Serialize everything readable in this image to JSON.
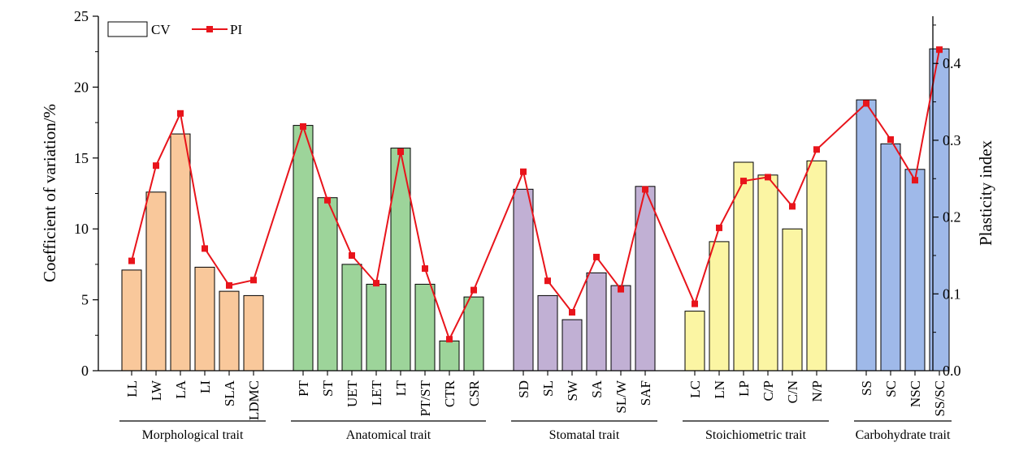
{
  "chart_data": {
    "type": "bar",
    "categories": [
      "LL",
      "LW",
      "LA",
      "LI",
      "SLA",
      "LDMC",
      "PT",
      "ST",
      "UET",
      "LET",
      "LT",
      "PT/ST",
      "CTR",
      "CSR",
      "SD",
      "SL",
      "SW",
      "SA",
      "SL/W",
      "SAF",
      "LC",
      "LN",
      "LP",
      "C/P",
      "C/N",
      "N/P",
      "SS",
      "SC",
      "NSC",
      "SS/SC"
    ],
    "groups": [
      {
        "name": "Morphological trait",
        "count": 6,
        "color": "#f9c89b"
      },
      {
        "name": "Anatomical trait",
        "count": 8,
        "color": "#9dd49a"
      },
      {
        "name": "Stomatal trait",
        "count": 6,
        "color": "#c1b0d4"
      },
      {
        "name": "Stoichiometric trait",
        "count": 6,
        "color": "#fbf5a3"
      },
      {
        "name": "Carbohydrate trait",
        "count": 4,
        "color": "#9fb9e9"
      }
    ],
    "series": [
      {
        "name": "CV",
        "kind": "bar",
        "axis": "left",
        "values": [
          7.1,
          12.6,
          16.7,
          7.3,
          5.6,
          5.3,
          17.3,
          12.2,
          7.5,
          6.1,
          15.7,
          6.1,
          2.1,
          5.2,
          12.8,
          5.3,
          3.6,
          6.9,
          6.0,
          13.0,
          4.2,
          9.1,
          14.7,
          13.8,
          10.0,
          14.8,
          19.1,
          16.0,
          14.2,
          22.7
        ]
      },
      {
        "name": "PI",
        "kind": "line",
        "axis": "right",
        "color": "#e8141b",
        "values": [
          0.143,
          0.267,
          0.335,
          0.159,
          0.111,
          0.118,
          0.318,
          0.222,
          0.15,
          0.114,
          0.285,
          0.133,
          0.041,
          0.105,
          0.259,
          0.117,
          0.076,
          0.148,
          0.106,
          0.236,
          0.087,
          0.186,
          0.247,
          0.252,
          0.214,
          0.288,
          0.348,
          0.301,
          0.248,
          0.418
        ]
      }
    ],
    "ylabel": "Coefficient of variation/%",
    "ylim": [
      0,
      25
    ],
    "yticks": [
      "0",
      "5",
      "10",
      "15",
      "20",
      "25"
    ],
    "y2label": "Plasticity index",
    "y2lim": [
      0,
      0.4615
    ],
    "y2ticks": [
      "0.0",
      "0.1",
      "0.2",
      "0.3",
      "0.4"
    ],
    "legend_position": "top-left",
    "grid": false
  }
}
